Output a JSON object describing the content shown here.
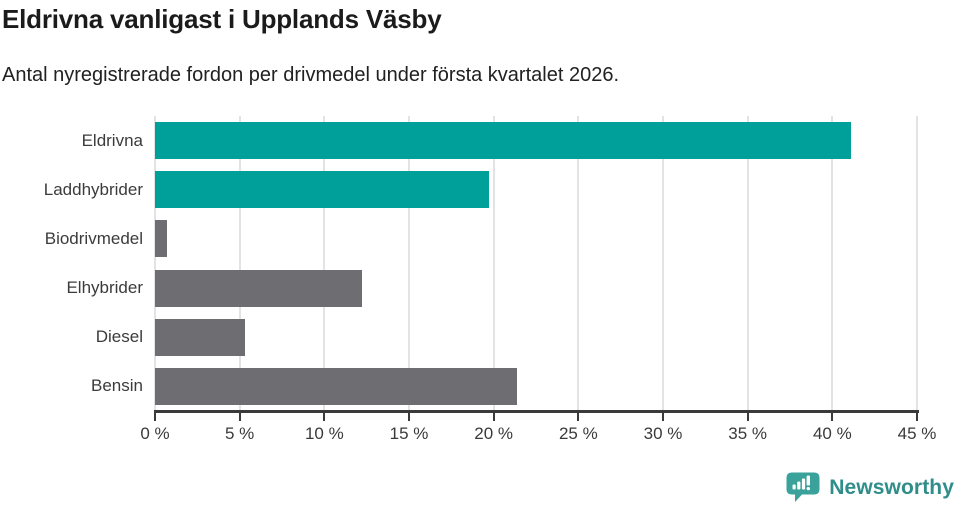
{
  "title": "Eldrivna vanligast i Upplands Väsby",
  "subtitle": "Antal nyregistrerade fordon per drivmedel under första kvartalet 2026.",
  "colors": {
    "highlight_bar": "#00a09a",
    "default_bar": "#6e6d72",
    "gridline": "#e3e3e5",
    "axis": "#3a3a3a",
    "label_text": "#3b3b3b",
    "brand_text": "#2f8d8a",
    "brand_icon": "#3aa29b"
  },
  "chart_data": {
    "type": "bar",
    "orientation": "horizontal",
    "title": "Eldrivna vanligast i Upplands Väsby",
    "subtitle": "Antal nyregistrerade fordon per drivmedel under första kvartalet 2026.",
    "categories": [
      "Eldrivna",
      "Laddhybrider",
      "Biodrivmedel",
      "Elhybrider",
      "Diesel",
      "Bensin"
    ],
    "values": [
      41.1,
      19.7,
      0.7,
      12.2,
      5.3,
      21.4
    ],
    "bar_colors": [
      "#00a09a",
      "#00a09a",
      "#6e6d72",
      "#6e6d72",
      "#6e6d72",
      "#6e6d72"
    ],
    "unit": "%",
    "xlabel": "",
    "ylabel": "",
    "xlim": [
      0,
      45
    ],
    "x_tick_values": [
      0,
      5,
      10,
      15,
      20,
      25,
      30,
      35,
      40,
      45
    ],
    "x_tick_labels": [
      "0 %",
      "5 %",
      "10 %",
      "15 %",
      "20 %",
      "25 %",
      "30 %",
      "35 %",
      "40 %",
      "45 %"
    ],
    "grid": "vertical",
    "legend": "none"
  },
  "footer": {
    "brand": "Newsworthy"
  }
}
